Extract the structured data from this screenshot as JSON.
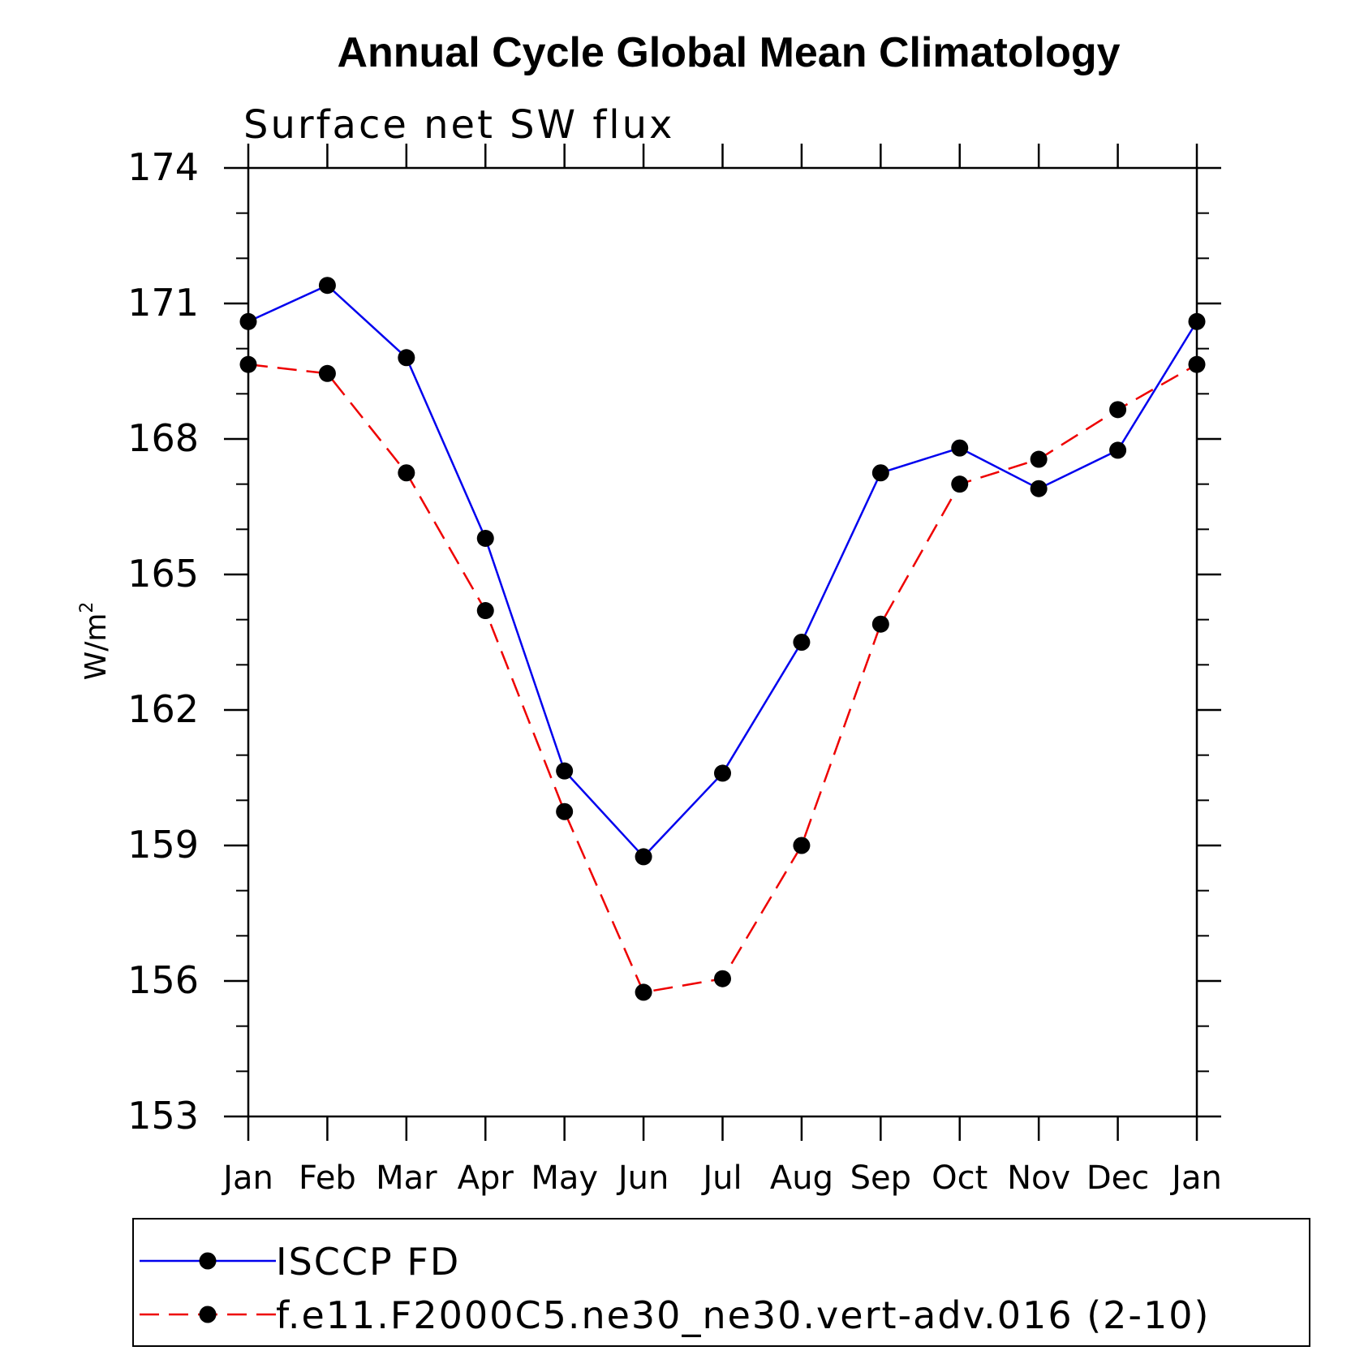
{
  "chart_data": {
    "type": "line",
    "title": "Annual Cycle Global Mean Climatology",
    "subtitle": "Surface net SW flux",
    "ylabel": "W/m",
    "ylabel_superscript": "2",
    "xlabel": "",
    "categories": [
      "Jan",
      "Feb",
      "Mar",
      "Apr",
      "May",
      "Jun",
      "Jul",
      "Aug",
      "Sep",
      "Oct",
      "Nov",
      "Dec",
      "Jan"
    ],
    "ylim": [
      153,
      174
    ],
    "yticks": [
      153,
      156,
      159,
      162,
      165,
      168,
      171,
      174
    ],
    "ytick_labels": [
      "153",
      "156",
      "159",
      "162",
      "165",
      "168",
      "171",
      "174"
    ],
    "grid": false,
    "legend_position": "bottom",
    "series": [
      {
        "name": "ISCCP FD",
        "color": "#0000ee",
        "style": "solid",
        "marker": "filled-circle",
        "values": [
          170.6,
          171.4,
          169.8,
          165.8,
          160.65,
          158.75,
          160.6,
          163.5,
          167.25,
          167.8,
          166.9,
          167.75,
          170.6
        ]
      },
      {
        "name": "f.e11.F2000C5.ne30_ne30.vert-adv.016 (2-10)",
        "color": "#ee0000",
        "style": "dashed",
        "marker": "filled-circle",
        "values": [
          169.65,
          169.45,
          167.25,
          164.2,
          159.75,
          155.75,
          156.05,
          159.0,
          163.9,
          167.0,
          167.55,
          168.65,
          169.65
        ]
      }
    ]
  }
}
